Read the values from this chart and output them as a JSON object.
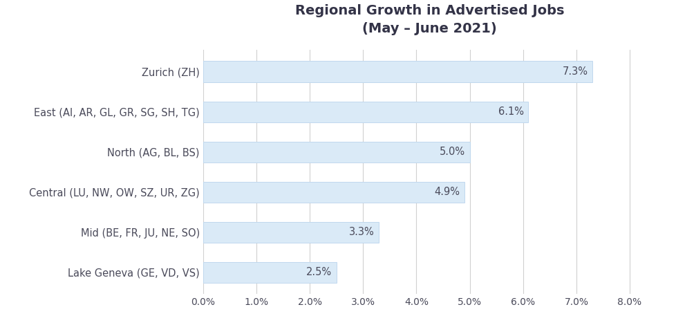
{
  "title": "Regional Growth in Advertised Jobs",
  "subtitle": "(May – June 2021)",
  "categories": [
    "Lake Geneva (GE, VD, VS)",
    "Mid (BE, FR, JU, NE, SO)",
    "Central (LU, NW, OW, SZ, UR, ZG)",
    "North (AG, BL, BS)",
    "East (AI, AR, GL, GR, SG, SH, TG)",
    "Zurich (ZH)"
  ],
  "values": [
    2.5,
    3.3,
    4.9,
    5.0,
    6.1,
    7.3
  ],
  "bar_color": "#daeaf7",
  "bar_edge_color": "#c0d8ee",
  "label_color": "#4a4a5a",
  "title_color": "#333347",
  "tick_label_color": "#4a4a5a",
  "xlim": [
    0.0,
    8.5
  ],
  "xticks": [
    0.0,
    1.0,
    2.0,
    3.0,
    4.0,
    5.0,
    6.0,
    7.0,
    8.0
  ],
  "grid_color": "#d0d0d0",
  "background_color": "#ffffff",
  "bar_height": 0.52,
  "value_label_fontsize": 10.5,
  "category_fontsize": 10.5,
  "title_fontsize": 14,
  "subtitle_fontsize": 11
}
